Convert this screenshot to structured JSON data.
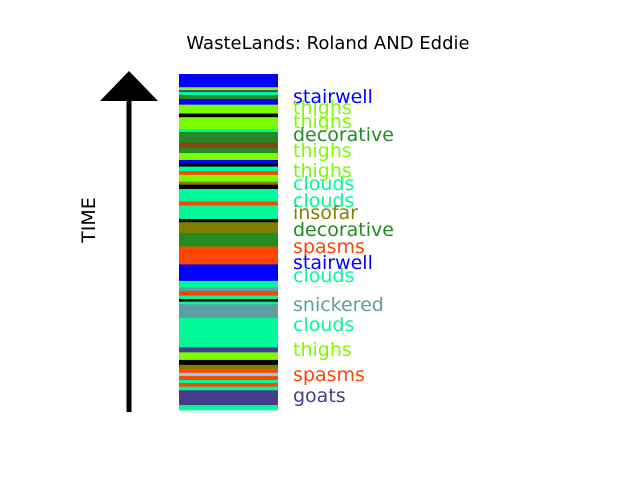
{
  "chart_data": {
    "type": "bar",
    "title": "WasteLands: Roland AND Eddie",
    "ylabel": "TIME",
    "labels": [
      {
        "text": "stairwell",
        "color": "#0000ff"
      },
      {
        "text": "thighs",
        "color": "#7cfc00"
      },
      {
        "text": "thighs",
        "color": "#7cfc00"
      },
      {
        "text": "decorative",
        "color": "#228b22"
      },
      {
        "text": "thighs",
        "color": "#7cfc00"
      },
      {
        "text": "thighs",
        "color": "#7cfc00"
      },
      {
        "text": "clouds",
        "color": "#00fa9a"
      },
      {
        "text": "clouds",
        "color": "#00fa9a"
      },
      {
        "text": "insofar",
        "color": "#808000"
      },
      {
        "text": "decorative",
        "color": "#228b22"
      },
      {
        "text": "spasms",
        "color": "#ff4500"
      },
      {
        "text": "stairwell",
        "color": "#0000ff"
      },
      {
        "text": "clouds",
        "color": "#00fa9a"
      },
      {
        "text": "snickered",
        "color": "#5f9ea0"
      },
      {
        "text": "clouds",
        "color": "#00fa9a"
      },
      {
        "text": "thighs",
        "color": "#7cfc00"
      },
      {
        "text": "spasms",
        "color": "#ff4500"
      },
      {
        "text": "goats",
        "color": "#483d8b"
      }
    ],
    "stripes": [
      {
        "span": 0.027,
        "color": "#0000ff"
      },
      {
        "span": 0.013,
        "color": "#0000ff"
      },
      {
        "span": 0.009,
        "color": "#7cfc00"
      },
      {
        "span": 0.006,
        "color": "#483d8b"
      },
      {
        "span": 0.009,
        "color": "#00fa9a"
      },
      {
        "span": 0.012,
        "color": "#228b22"
      },
      {
        "span": 0.017,
        "color": "#0000ff"
      },
      {
        "span": 0.027,
        "color": "#7cfc00"
      },
      {
        "span": 0.011,
        "color": "#000000"
      },
      {
        "span": 0.015,
        "color": "#7cfc00"
      },
      {
        "span": 0.021,
        "color": "#7cfc00"
      },
      {
        "span": 0.009,
        "color": "#00fa9a"
      },
      {
        "span": 0.02,
        "color": "#228b22"
      },
      {
        "span": 0.012,
        "color": "#228b22"
      },
      {
        "span": 0.016,
        "color": "#8b4513"
      },
      {
        "span": 0.016,
        "color": "#228b22"
      },
      {
        "span": 0.021,
        "color": "#7cfc00"
      },
      {
        "span": 0.01,
        "color": "#0000ff"
      },
      {
        "span": 0.01,
        "color": "#000000"
      },
      {
        "span": 0.014,
        "color": "#00fa9a"
      },
      {
        "span": 0.011,
        "color": "#ff4500"
      },
      {
        "span": 0.021,
        "color": "#7cfc00"
      },
      {
        "span": 0.009,
        "color": "#808000"
      },
      {
        "span": 0.013,
        "color": "#000000"
      },
      {
        "span": 0.038,
        "color": "#00fa9a"
      },
      {
        "span": 0.012,
        "color": "#ff4500"
      },
      {
        "span": 0.041,
        "color": "#00fa9a"
      },
      {
        "span": 0.01,
        "color": "#000000"
      },
      {
        "span": 0.013,
        "color": "#808000"
      },
      {
        "span": 0.019,
        "color": "#808000"
      },
      {
        "span": 0.015,
        "color": "#228b22"
      },
      {
        "span": 0.025,
        "color": "#228b22"
      },
      {
        "span": 0.006,
        "color": "#808000"
      },
      {
        "span": 0.05,
        "color": "#ff4500"
      },
      {
        "span": 0.05,
        "color": "#0000ff"
      },
      {
        "span": 0.02,
        "color": "#00fa9a"
      },
      {
        "span": 0.011,
        "color": "#5f9ea0"
      },
      {
        "span": 0.014,
        "color": "#ff4500"
      },
      {
        "span": 0.01,
        "color": "#00fa9a"
      },
      {
        "span": 0.008,
        "color": "#000000"
      },
      {
        "span": 0.008,
        "color": "#00fa9a"
      },
      {
        "span": 0.042,
        "color": "#5f9ea0"
      },
      {
        "span": 0.089,
        "color": "#00fa9a"
      },
      {
        "span": 0.015,
        "color": "#483d8b"
      },
      {
        "span": 0.023,
        "color": "#7cfc00"
      },
      {
        "span": 0.015,
        "color": "#000000"
      },
      {
        "span": 0.012,
        "color": "#808000"
      },
      {
        "span": 0.012,
        "color": "#ff4500"
      },
      {
        "span": 0.01,
        "color": "#87ceeb"
      },
      {
        "span": 0.012,
        "color": "#ff4500"
      },
      {
        "span": 0.009,
        "color": "#00fa9a"
      },
      {
        "span": 0.011,
        "color": "#ff4500"
      },
      {
        "span": 0.011,
        "color": "#00fa9a"
      },
      {
        "span": 0.045,
        "color": "#483d8b"
      },
      {
        "span": 0.015,
        "color": "#00fa9a"
      }
    ]
  }
}
